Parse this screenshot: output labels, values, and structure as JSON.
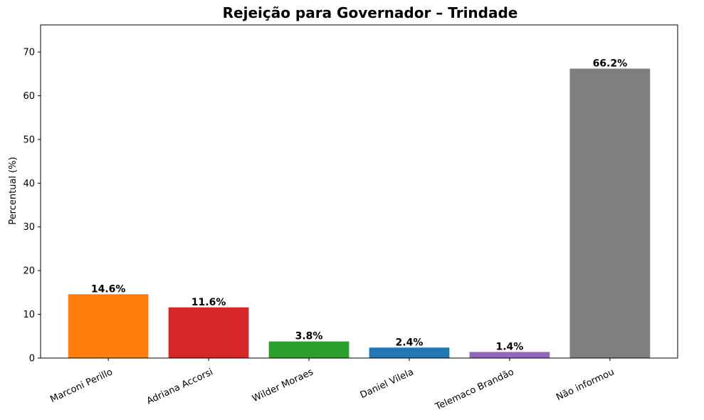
{
  "chart_data": {
    "type": "bar",
    "title": "Rejeição para Governador – Trindade",
    "xlabel": "",
    "ylabel": "Percentual (%)",
    "ylim": [
      0,
      76.2
    ],
    "yticks": [
      0,
      10,
      20,
      30,
      40,
      50,
      60,
      70
    ],
    "grid": false,
    "categories": [
      "Marconi Perillo",
      "Adriana Accorsi",
      "Wilder Moraes",
      "Daniel Vilela",
      "Telemaco Brandão",
      "Não informou"
    ],
    "values": [
      14.6,
      11.6,
      3.8,
      2.4,
      1.4,
      66.2
    ],
    "value_labels": [
      "14.6%",
      "11.6%",
      "3.8%",
      "2.4%",
      "1.4%",
      "66.2%"
    ],
    "colors": [
      "#ff7f0e",
      "#d62728",
      "#2ca02c",
      "#1f77b4",
      "#9467bd",
      "#7f7f7f"
    ]
  }
}
